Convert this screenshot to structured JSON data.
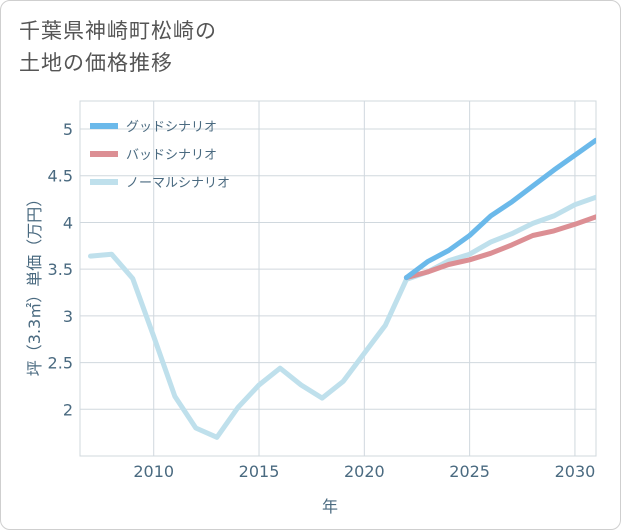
{
  "chart_data": {
    "type": "line",
    "title_line1": "千葉県神崎町松崎の",
    "title_line2": "土地の価格推移",
    "xlabel": "年",
    "ylabel": "坪（3.3㎡）単価（万円）",
    "xlim": [
      2006.5,
      2031
    ],
    "ylim": [
      1.5,
      5.3
    ],
    "xticks": [
      2010,
      2015,
      2020,
      2025,
      2030
    ],
    "xtick_labels": [
      "2010",
      "2015",
      "2020",
      "2025",
      "2030"
    ],
    "yticks": [
      2,
      2.5,
      3,
      3.5,
      4,
      4.5,
      5
    ],
    "ytick_labels": [
      "2",
      "2.5",
      "3",
      "3.5",
      "4",
      "4.5",
      "5"
    ],
    "series": [
      {
        "name": "グッドシナリオ",
        "color": "#6bb9ea",
        "x": [
          2022,
          2023,
          2024,
          2025,
          2026,
          2027,
          2028,
          2029,
          2030,
          2031
        ],
        "y": [
          3.41,
          3.58,
          3.7,
          3.86,
          4.07,
          4.22,
          4.39,
          4.56,
          4.72,
          4.88
        ]
      },
      {
        "name": "バッドシナリオ",
        "color": "#dc8f94",
        "x": [
          2022,
          2023,
          2024,
          2025,
          2026,
          2027,
          2028,
          2029,
          2030,
          2031
        ],
        "y": [
          3.41,
          3.47,
          3.55,
          3.6,
          3.67,
          3.76,
          3.86,
          3.91,
          3.98,
          4.06
        ]
      },
      {
        "name": "ノーマルシナリオ",
        "color": "#bfe0ec",
        "x": [
          2007,
          2008,
          2009,
          2010,
          2011,
          2012,
          2013,
          2014,
          2015,
          2016,
          2017,
          2018,
          2019,
          2020,
          2021,
          2022,
          2023,
          2024,
          2025,
          2026,
          2027,
          2028,
          2029,
          2030,
          2031
        ],
        "y": [
          3.64,
          3.66,
          3.4,
          2.78,
          2.14,
          1.8,
          1.7,
          2.02,
          2.26,
          2.44,
          2.26,
          2.12,
          2.3,
          2.6,
          2.9,
          3.39,
          3.47,
          3.59,
          3.66,
          3.79,
          3.88,
          3.99,
          4.07,
          4.19,
          4.27
        ]
      }
    ]
  }
}
